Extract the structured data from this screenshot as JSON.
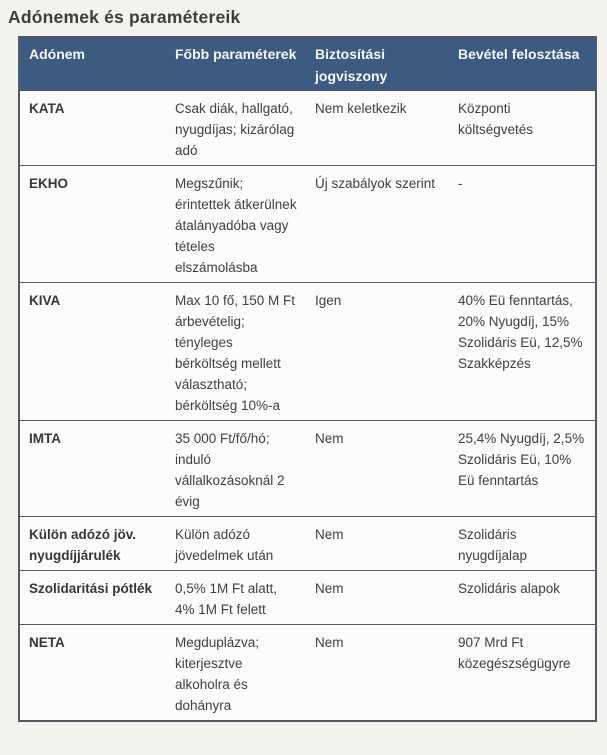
{
  "page_title": "Adónemek és paramétereik",
  "colors": {
    "header_bg": "#3d5a80",
    "header_text": "#f5f7fa",
    "body_text": "#3e4043",
    "border": "#525960",
    "page_bg": "#f3f2ef",
    "cell_bg": "#fcfcfa"
  },
  "table": {
    "columns": [
      "Adónem",
      "Főbb paraméterek",
      "Biztosítási jogviszony",
      "Bevétel felosztása"
    ],
    "rows": [
      {
        "name": "KATA",
        "params": "Csak diák, hallgató, nyugdíjas; kizárólag adó",
        "insurance": "Nem keletkezik",
        "revenue": "Központi költségvetés"
      },
      {
        "name": "EKHO",
        "params": "Megszűnik; érintettek átkerülnek átalányadóba vagy tételes elszámolásba",
        "insurance": "Új szabályok szerint",
        "revenue": "-"
      },
      {
        "name": "KIVA",
        "params": "Max 10 fő, 150 M Ft árbevételig; tényleges bérköltség mellett választható; bérköltség 10%-a",
        "insurance": "Igen",
        "revenue": "40% Eü fenntartás, 20% Nyugdíj, 15% Szolidáris Eü, 12,5% Szakképzés"
      },
      {
        "name": "IMTA",
        "params": "35 000 Ft/fő/hó; induló vállalkozásoknál 2 évig",
        "insurance": "Nem",
        "revenue": "25,4% Nyugdíj, 2,5% Szolidáris Eü, 10% Eü fenntartás"
      },
      {
        "name": "Külön adózó jöv. nyugdíjjárulék",
        "params": "Külön adózó jövedelmek után",
        "insurance": "Nem",
        "revenue": "Szolidáris nyugdíjalap"
      },
      {
        "name": "Szolidaritási pótlék",
        "params": "0,5% 1M Ft alatt, 4% 1M Ft felett",
        "insurance": "Nem",
        "revenue": "Szolidáris alapok"
      },
      {
        "name": "NETA",
        "params": "Megduplázva; kiterjesztve alkoholra és dohányra",
        "insurance": "Nem",
        "revenue": "907 Mrd Ft közegészségügyre"
      }
    ]
  }
}
